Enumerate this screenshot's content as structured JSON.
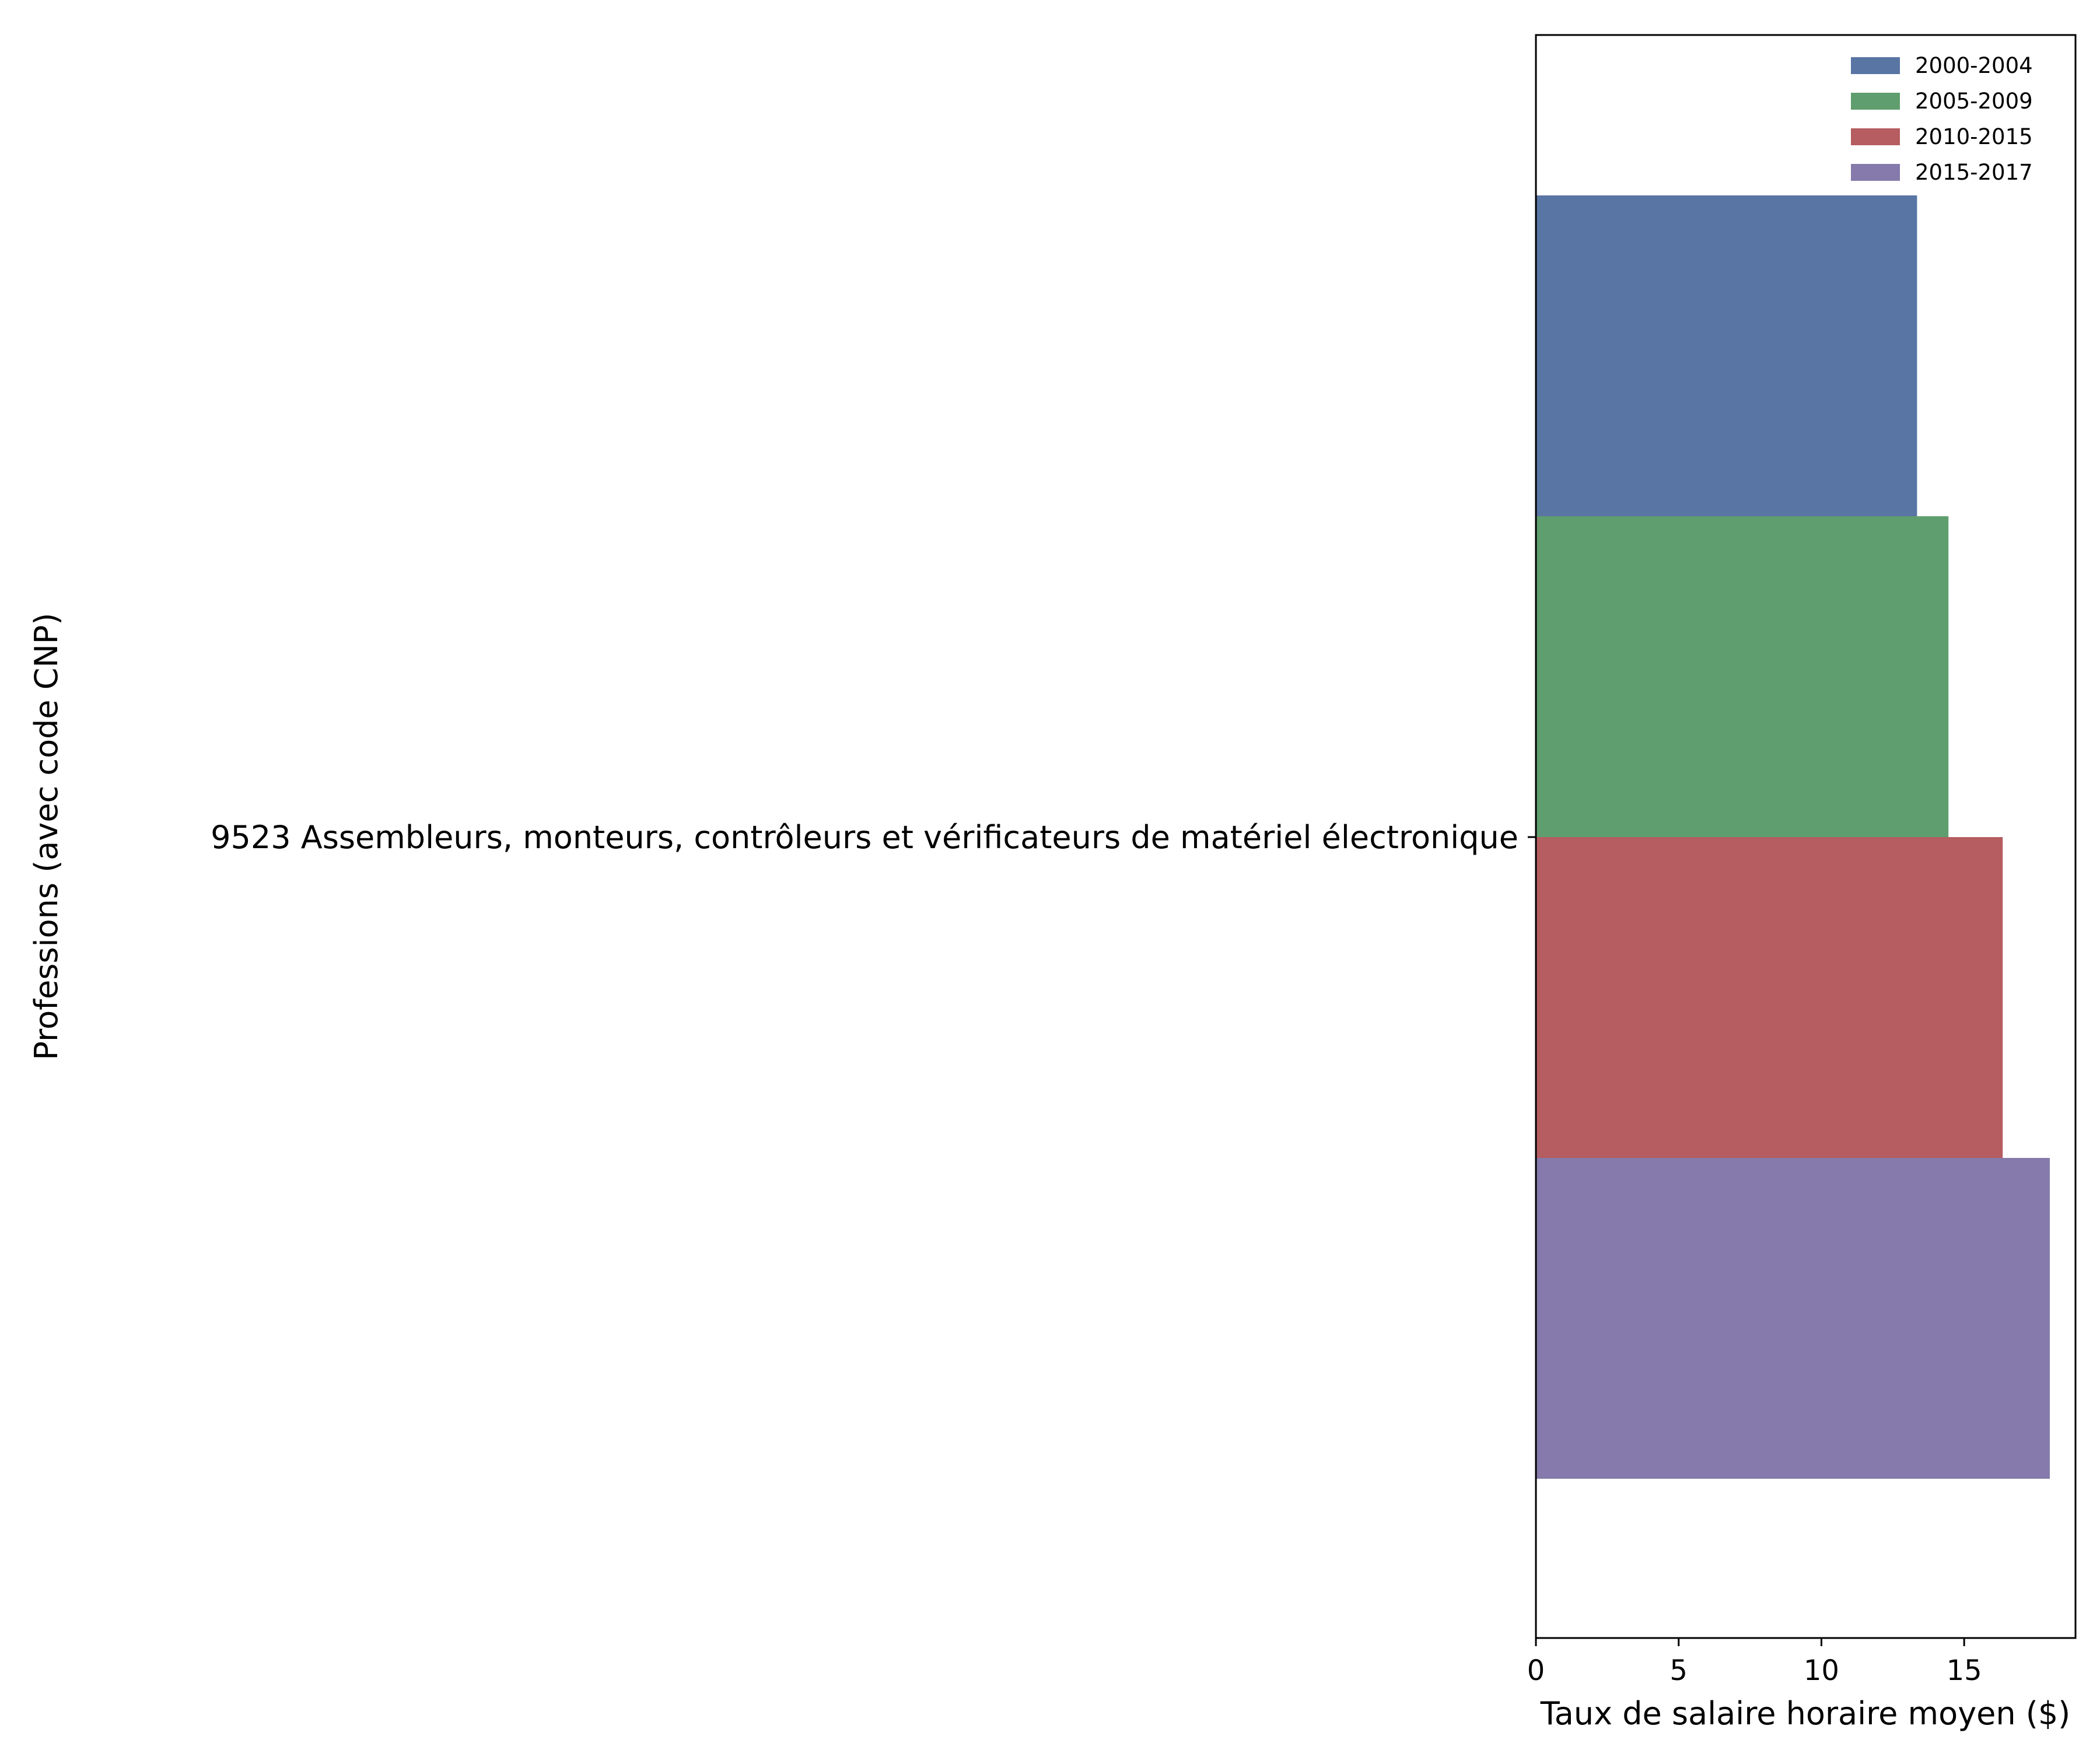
{
  "chart_data": {
    "type": "bar",
    "orientation": "horizontal",
    "categories": [
      "9523 Assembleurs, monteurs, contrôleurs et vérificateurs de matériel électronique"
    ],
    "series": [
      {
        "name": "2000-2004",
        "values": [
          13.35
        ],
        "color": "#5975a4"
      },
      {
        "name": "2005-2009",
        "values": [
          14.45
        ],
        "color": "#5f9e6e"
      },
      {
        "name": "2010-2015",
        "values": [
          16.35
        ],
        "color": "#b55d60"
      },
      {
        "name": "2015-2017",
        "values": [
          18.0
        ],
        "color": "#857aab"
      }
    ],
    "xlabel": "Taux de salaire horaire moyen ($)",
    "ylabel": "Professions (avec code CNP)",
    "xlim": [
      0,
      18.9
    ],
    "xticks": [
      0,
      5,
      10,
      15
    ],
    "grid": false,
    "legend_position": "top-right"
  }
}
